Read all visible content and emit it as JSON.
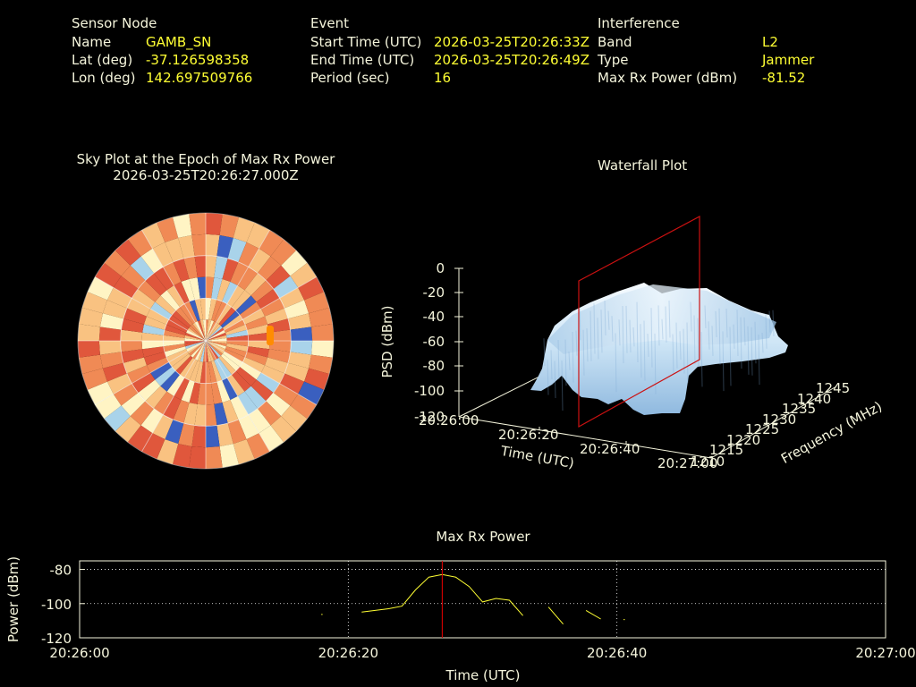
{
  "header": {
    "sensor": {
      "heading": "Sensor Node",
      "name_label": "Name",
      "name_value": "GAMB_SN",
      "lat_label": "Lat (deg)",
      "lat_value": "-37.126598358",
      "lon_label": "Lon (deg)",
      "lon_value": "142.697509766"
    },
    "event": {
      "heading": "Event",
      "start_label": "Start Time (UTC)",
      "start_value": "2026-03-25T20:26:33Z",
      "end_label": "End Time (UTC)",
      "end_value": "2026-03-25T20:26:49Z",
      "period_label": "Period (sec)",
      "period_value": "16"
    },
    "interference": {
      "heading": "Interference",
      "band_label": "Band",
      "band_value": "L2",
      "type_label": "Type",
      "type_value": "Jammer",
      "power_label": "Max Rx Power (dBm)",
      "power_value": "-81.52"
    }
  },
  "colors": {
    "label": "#f5f5dc",
    "value": "#ffff33",
    "trace": "#ffff33",
    "marker": "#cc0000",
    "grid": "#ffffff"
  },
  "chart_data": [
    {
      "type": "heatmap",
      "title": "Sky Plot at the Epoch of Max Rx Power",
      "subtitle": "2026-03-25T20:26:27.000Z",
      "projection": "polar",
      "rings": 6,
      "sectors": 48,
      "rings_drawn": [
        30,
        60
      ],
      "radial_lines": 12,
      "colormap": [
        "#3a5fbf",
        "#a9d3ea",
        "#fff4c4",
        "#f9c281",
        "#f08a55",
        "#e0573c"
      ],
      "highlight_color": "#ff8c00"
    },
    {
      "type": "area",
      "title": "Waterfall Plot",
      "xlabel": "Time (UTC)",
      "ylabel": "Frequency (MHz)",
      "zlabel": "PSD (dBm)",
      "x_ticks": [
        "20:26:00",
        "20:26:20",
        "20:26:40",
        "20:27:00"
      ],
      "y_ticks": [
        "1210",
        "1215",
        "1220",
        "1225",
        "1230",
        "1235",
        "1240",
        "1245"
      ],
      "z_ticks": [
        "0",
        "-20",
        "-40",
        "-60",
        "-80",
        "-100",
        "-120"
      ],
      "zlim": [
        -120,
        0
      ],
      "marker_time": "20:26:27"
    },
    {
      "type": "line",
      "title": "Max Rx Power",
      "xlabel": "Time (UTC)",
      "ylabel": "Power (dBm)",
      "x_ticks": [
        "20:26:00",
        "20:26:20",
        "20:26:40",
        "20:27:00"
      ],
      "y_ticks": [
        "-80",
        "-100",
        "-120"
      ],
      "xlim": [
        0,
        60
      ],
      "ylim": [
        -120,
        -75
      ],
      "marker_x": 27,
      "segments": [
        [
          [
            18.0,
            -106.0
          ]
        ],
        [
          [
            21.0,
            -105.0
          ],
          [
            23.0,
            -103.0
          ],
          [
            24.0,
            -101.5
          ],
          [
            25.0,
            -92.0
          ],
          [
            26.0,
            -84.5
          ],
          [
            27.0,
            -83.0
          ],
          [
            28.0,
            -84.5
          ],
          [
            29.0,
            -90.0
          ],
          [
            30.0,
            -99.0
          ],
          [
            31.0,
            -97.0
          ],
          [
            32.0,
            -98.0
          ],
          [
            33.0,
            -107.0
          ]
        ],
        [
          [
            34.9,
            -102.0
          ],
          [
            36.0,
            -112.0
          ]
        ],
        [
          [
            37.7,
            -104.0
          ],
          [
            38.8,
            -109.0
          ]
        ],
        [
          [
            40.5,
            -109.0
          ]
        ]
      ]
    }
  ]
}
